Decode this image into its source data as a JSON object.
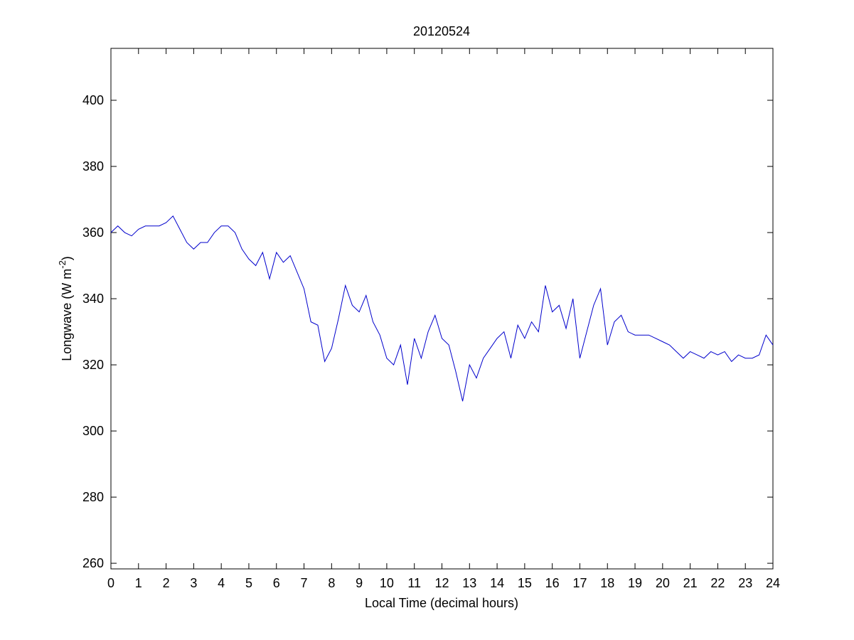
{
  "chart_data": {
    "type": "line",
    "title": "20120524",
    "xlabel": "Local Time (decimal hours)",
    "ylabel": {
      "text": "Longwave (W m",
      "superscript": "-2",
      "suffix": ")"
    },
    "xlim": [
      0,
      24
    ],
    "ylim": [
      258.3,
      415.7
    ],
    "xticks": [
      0,
      1,
      2,
      3,
      4,
      5,
      6,
      7,
      8,
      9,
      10,
      11,
      12,
      13,
      14,
      15,
      16,
      17,
      18,
      19,
      20,
      21,
      22,
      23,
      24
    ],
    "yticks": [
      260,
      280,
      300,
      320,
      340,
      360,
      380,
      400
    ],
    "grid": false,
    "series": [
      {
        "color": "#0000cc",
        "x": [
          0,
          0.25,
          0.5,
          0.75,
          1,
          1.25,
          1.5,
          1.75,
          2,
          2.25,
          2.5,
          2.75,
          3,
          3.25,
          3.5,
          3.75,
          4,
          4.25,
          4.5,
          4.75,
          5,
          5.25,
          5.5,
          5.75,
          6,
          6.25,
          6.5,
          6.75,
          7,
          7.25,
          7.5,
          7.75,
          8,
          8.25,
          8.5,
          8.75,
          9,
          9.25,
          9.5,
          9.75,
          10,
          10.25,
          10.5,
          10.75,
          11,
          11.25,
          11.5,
          11.75,
          12,
          12.25,
          12.5,
          12.75,
          13,
          13.25,
          13.5,
          13.75,
          14,
          14.25,
          14.5,
          14.75,
          15,
          15.25,
          15.5,
          15.75,
          16,
          16.25,
          16.5,
          16.75,
          17,
          17.25,
          17.5,
          17.75,
          18,
          18.25,
          18.5,
          18.75,
          19,
          19.25,
          19.5,
          19.75,
          20,
          20.25,
          20.5,
          20.75,
          21,
          21.25,
          21.5,
          21.75,
          22,
          22.25,
          22.5,
          22.75,
          23,
          23.25,
          23.5,
          23.75,
          24
        ],
        "values": [
          360,
          362,
          360,
          359,
          361,
          362,
          362,
          362,
          363,
          365,
          361,
          357,
          355,
          357,
          357,
          360,
          362,
          362,
          360,
          355,
          352,
          350,
          354,
          346,
          354,
          351,
          353,
          348,
          343,
          333,
          332,
          321,
          325,
          334,
          344,
          338,
          336,
          341,
          333,
          329,
          322,
          320,
          326,
          314,
          328,
          322,
          330,
          335,
          328,
          326,
          318,
          309,
          320,
          316,
          322,
          325,
          328,
          330,
          322,
          332,
          328,
          333,
          330,
          344,
          336,
          338,
          331,
          340,
          322,
          330,
          338,
          343,
          326,
          333,
          335,
          330,
          329,
          329,
          329,
          328,
          327,
          326,
          324,
          322,
          324,
          323,
          322,
          324,
          323,
          324,
          321,
          323,
          322,
          322,
          323,
          329,
          326
        ]
      }
    ]
  }
}
